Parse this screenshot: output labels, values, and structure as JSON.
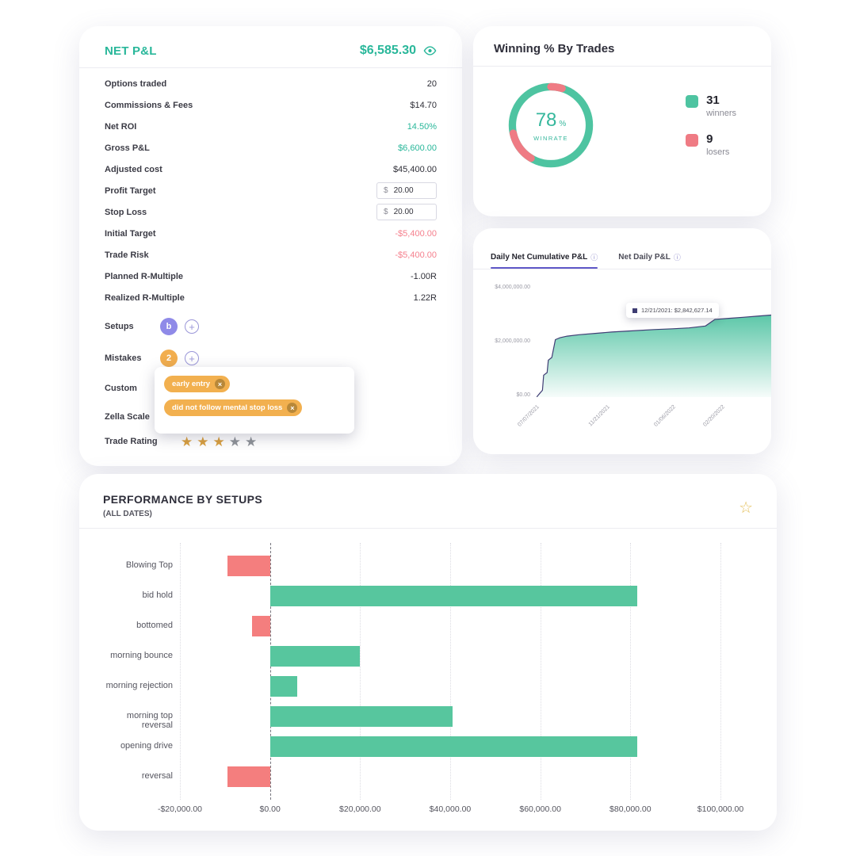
{
  "colors": {
    "accent_teal": "#29b79a",
    "negative_pink": "#f5808e",
    "badge_purple": "#8f8ae8",
    "badge_orange": "#f2ae4e",
    "tag_orange": "#f2b04f",
    "donut_green": "#4ec4a1",
    "donut_red": "#ef7b84",
    "bar_green": "#57c69e",
    "bar_red": "#f47e7e",
    "line_navy": "#413e75",
    "tab_underline_purple": "#5f57c7",
    "star_gold": "#d99f3e"
  },
  "net_pnl": {
    "title": "NET P&L",
    "value": "$6,585.30",
    "rows": [
      {
        "label": "Options traded",
        "value": "20",
        "tone": "dark"
      },
      {
        "label": "Commissions & Fees",
        "value": "$14.70",
        "tone": "dark"
      },
      {
        "label": "Net ROI",
        "value": "14.50%",
        "tone": "green"
      },
      {
        "label": "Gross P&L",
        "value": "$6,600.00",
        "tone": "green"
      },
      {
        "label": "Adjusted cost",
        "value": "$45,400.00",
        "tone": "dark"
      },
      {
        "label": "Profit Target",
        "input": true,
        "prefix": "$",
        "value": "20.00"
      },
      {
        "label": "Stop Loss",
        "input": true,
        "prefix": "$",
        "value": "20.00"
      },
      {
        "label": "Initial Target",
        "value": "-$5,400.00",
        "tone": "red"
      },
      {
        "label": "Trade Risk",
        "value": "-$5,400.00",
        "tone": "red"
      },
      {
        "label": "Planned R-Multiple",
        "value": "-1.00R",
        "tone": "dark"
      },
      {
        "label": "Realized R-Multiple",
        "value": "1.22R",
        "tone": "dark"
      }
    ],
    "setups": {
      "label": "Setups",
      "badge": "b"
    },
    "mistakes": {
      "label": "Mistakes",
      "badge": "2"
    },
    "custom": {
      "label": "Custom",
      "tags": [
        {
          "text": "early entry"
        },
        {
          "text": "did not follow mental stop loss"
        }
      ]
    },
    "zella_scale": {
      "label": "Zella Scale"
    },
    "trade_rating": {
      "label": "Trade Rating",
      "filled": 3,
      "total": 5
    }
  },
  "winning": {
    "title": "Winning % By Trades",
    "percent": "78",
    "percent_sign": "%",
    "winrate_label": "WINRATE",
    "winners": {
      "count": "31",
      "label": "winners"
    },
    "losers": {
      "count": "9",
      "label": "losers"
    }
  },
  "daily": {
    "tabs": [
      {
        "label": "Daily Net Cumulative P&L",
        "active": true
      },
      {
        "label": "Net Daily P&L",
        "active": false
      }
    ],
    "tooltip_text": "12/21/2021: $2,842,627.14",
    "y_ticks": [
      "$4,000,000.00",
      "$2,000,000.00",
      "$0.00"
    ],
    "x_ticks": [
      "07/07/2021",
      "11/21/2021",
      "01/06/2022",
      "02/20/2022"
    ]
  },
  "performance": {
    "title": "PERFORMANCE BY SETUPS",
    "subtitle": "(ALL DATES)"
  },
  "chart_data": [
    {
      "type": "pie",
      "title": "Winning % By Trades",
      "labels": [
        "winners",
        "losers"
      ],
      "values": [
        31,
        9
      ],
      "center_text": "78 % WINRATE",
      "colors": [
        "#4ec4a1",
        "#ef7b84"
      ],
      "legend_position": "right"
    },
    {
      "type": "area",
      "title": "Daily Net Cumulative P&L",
      "ylim": [
        0,
        4000000
      ],
      "y_ticks": [
        "$4,000,000.00",
        "$2,000,000.00",
        "$0.00"
      ],
      "x_ticks": [
        "07/07/2021",
        "11/21/2021",
        "01/06/2022",
        "02/20/2022"
      ],
      "tooltip": {
        "date": "12/21/2021",
        "value": "$2,842,627.14"
      },
      "points": [
        [
          0,
          0
        ],
        [
          0.015,
          150000
        ],
        [
          0.025,
          250000
        ],
        [
          0.03,
          800000
        ],
        [
          0.045,
          900000
        ],
        [
          0.05,
          1350000
        ],
        [
          0.065,
          1450000
        ],
        [
          0.08,
          2100000
        ],
        [
          0.1,
          2170000
        ],
        [
          0.13,
          2230000
        ],
        [
          0.18,
          2280000
        ],
        [
          0.25,
          2330000
        ],
        [
          0.32,
          2380000
        ],
        [
          0.4,
          2420000
        ],
        [
          0.5,
          2470000
        ],
        [
          0.58,
          2500000
        ],
        [
          0.65,
          2530000
        ],
        [
          0.72,
          2600000
        ],
        [
          0.76,
          2842627
        ],
        [
          0.82,
          2880000
        ],
        [
          0.88,
          2920000
        ],
        [
          0.94,
          2960000
        ],
        [
          1,
          3000000
        ]
      ]
    },
    {
      "type": "bar",
      "orientation": "horizontal",
      "title": "Performance by Setups (All Dates)",
      "categories": [
        "Blowing Top",
        "bid hold",
        "bottomed",
        "morning bounce",
        "morning rejection",
        "morning top reversal",
        "opening drive",
        "reversal"
      ],
      "values": [
        -9500,
        81500,
        -4000,
        20000,
        6000,
        40500,
        81500,
        -9500
      ],
      "xlim": [
        -20000,
        100000
      ],
      "x_ticks": [
        "-$20,000.00",
        "$0.00",
        "$20,000.00",
        "$40,000.00",
        "$60,000.00",
        "$80,000.00",
        "$100,000.00"
      ],
      "grid": true
    }
  ]
}
